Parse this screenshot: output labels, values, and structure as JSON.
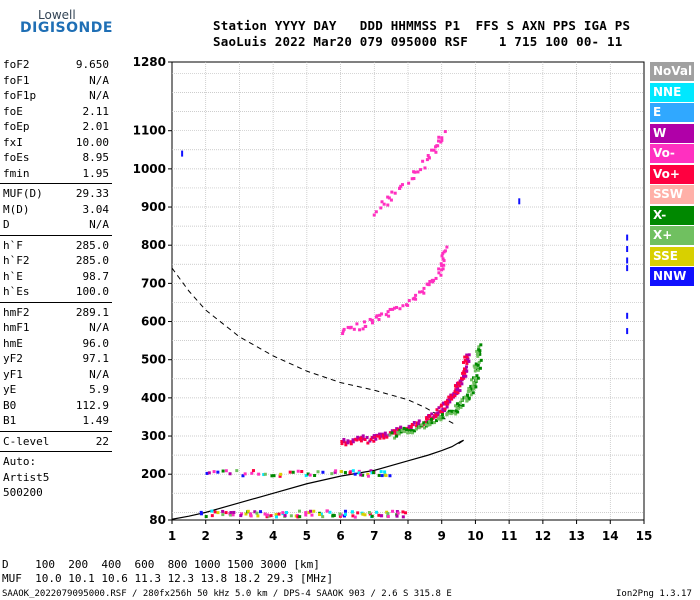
{
  "logo": {
    "top": "Lowell",
    "bottom": "DIGISONDE"
  },
  "header": {
    "line1": "Station YYYY DAY   DDD HHMMSS P1  FFS S AXN PPS IGA PS",
    "line2": "SaoLuis 2022 Mar20 079 095000 RSF    1 715 100 00- 11"
  },
  "params": {
    "group1": [
      {
        "k": "foF2",
        "v": "9.650"
      },
      {
        "k": "foF1",
        "v": "N/A"
      },
      {
        "k": "foF1p",
        "v": "N/A"
      },
      {
        "k": "foE",
        "v": "2.11"
      },
      {
        "k": "foEp",
        "v": "2.01"
      },
      {
        "k": "fxI",
        "v": "10.00"
      },
      {
        "k": "foEs",
        "v": "8.95"
      },
      {
        "k": "fmin",
        "v": "1.95"
      }
    ],
    "group2": [
      {
        "k": "MUF(D)",
        "v": "29.33"
      },
      {
        "k": "M(D)",
        "v": "3.04"
      },
      {
        "k": "D",
        "v": "N/A"
      }
    ],
    "group3": [
      {
        "k": "h`F",
        "v": "285.0"
      },
      {
        "k": "h`F2",
        "v": "285.0"
      },
      {
        "k": "h`E",
        "v": "98.7"
      },
      {
        "k": "h`Es",
        "v": "100.0"
      }
    ],
    "group4": [
      {
        "k": "hmF2",
        "v": "289.1"
      },
      {
        "k": "hmF1",
        "v": "N/A"
      },
      {
        "k": "hmE",
        "v": "96.0"
      },
      {
        "k": "yF2",
        "v": "97.1"
      },
      {
        "k": "yF1",
        "v": "N/A"
      },
      {
        "k": "yE",
        "v": "5.9"
      },
      {
        "k": "B0",
        "v": "112.9"
      },
      {
        "k": "B1",
        "v": "1.49"
      }
    ],
    "clevel": {
      "k": "C-level",
      "v": "22"
    },
    "auto": [
      "Auto:",
      "Artist5",
      "500200"
    ]
  },
  "legend": [
    {
      "label": "NoVal",
      "color": "#a0a0a0"
    },
    {
      "label": "NNE",
      "color": "#00e8ff"
    },
    {
      "label": "E",
      "color": "#30a8ff"
    },
    {
      "label": "W",
      "color": "#b000a8"
    },
    {
      "label": "Vo-",
      "color": "#ff30c0"
    },
    {
      "label": "Vo+",
      "color": "#ff0040"
    },
    {
      "label": "SSW",
      "color": "#ffb0a8"
    },
    {
      "label": "X-",
      "color": "#008800"
    },
    {
      "label": "X+",
      "color": "#70c060"
    },
    {
      "label": "SSE",
      "color": "#d8d000"
    },
    {
      "label": "NNW",
      "color": "#1010ff"
    }
  ],
  "footer": {
    "line1": "D    100  200  400  600  800 1000 1500 3000 [km]",
    "line2": "MUF  10.0 10.1 10.6 11.3 12.3 13.8 18.2 29.3 [MHz]",
    "line3": "SAAOK_2022079095000.RSF / 280fx256h 50 kHz 5.0 km / DPS-4 SAAOK 903 / 2.6 S 315.8 E",
    "version": "Ion2Png 1.3.17"
  },
  "chart_data": {
    "type": "scatter",
    "title": "",
    "xlabel": "",
    "ylabel": "",
    "xlim": [
      1,
      15
    ],
    "ylim": [
      80,
      1280
    ],
    "grid": true,
    "x_ticks": [
      1,
      2,
      3,
      4,
      5,
      6,
      7,
      8,
      9,
      10,
      11,
      12,
      13,
      14,
      15
    ],
    "y_ticks": [
      80,
      200,
      300,
      400,
      500,
      600,
      700,
      800,
      900,
      1000,
      1100,
      1280
    ],
    "series": [
      {
        "name": "",
        "style": "F2 O-trace",
        "color": "#ff0040",
        "x": [
          6.0,
          6.5,
          7.0,
          7.5,
          8.0,
          8.5,
          8.8,
          9.0,
          9.2,
          9.4,
          9.5,
          9.6,
          9.65
        ],
        "y": [
          285,
          290,
          298,
          310,
          325,
          345,
          360,
          375,
          395,
          420,
          445,
          480,
          520
        ]
      },
      {
        "name": "",
        "style": "F2 X-trace",
        "color": "#70c060",
        "x": [
          7.5,
          8.0,
          8.5,
          9.0,
          9.4,
          9.7,
          9.9,
          10.0,
          10.05
        ],
        "y": [
          305,
          315,
          330,
          350,
          375,
          405,
          440,
          485,
          540
        ]
      },
      {
        "name": "",
        "style": "2F second hop",
        "color": "#ff30c0",
        "x": [
          6.0,
          6.5,
          7.0,
          7.5,
          8.0,
          8.5,
          8.8,
          9.0,
          9.1
        ],
        "y": [
          575,
          590,
          610,
          630,
          655,
          690,
          720,
          760,
          800
        ]
      },
      {
        "name": "",
        "style": "3F third hop",
        "color": "#ff30c0",
        "x": [
          7.0,
          7.5,
          8.0,
          8.5,
          8.8,
          9.0
        ],
        "y": [
          890,
          930,
          975,
          1025,
          1065,
          1100
        ]
      },
      {
        "name": "",
        "style": "Es trace",
        "color": "#ff0040",
        "x": [
          2.0,
          3.0,
          4.0,
          5.0,
          6.0,
          6.5,
          7.0,
          7.5
        ],
        "y": [
          205,
          207,
          206,
          205,
          207,
          206,
          205,
          205
        ]
      },
      {
        "name": "",
        "style": "E layer echoes",
        "color": "#1010ff",
        "x": [
          1.8,
          2.5,
          3.0,
          3.5,
          4.0,
          4.5,
          5.0,
          5.5,
          6.0,
          6.5,
          7.0,
          7.5,
          8.0
        ],
        "y": [
          100,
          100,
          99,
          101,
          98,
          100,
          99,
          100,
          101,
          98,
          100,
          99,
          100
        ]
      }
    ],
    "profile": {
      "x": [
        1.0,
        1.5,
        2.0,
        3.0,
        4.0,
        5.0,
        6.0,
        7.0,
        8.0,
        8.6,
        9.0,
        9.3,
        9.55,
        9.65,
        9.6,
        9.5
      ],
      "y": [
        82,
        90,
        100,
        125,
        150,
        175,
        195,
        210,
        235,
        250,
        262,
        272,
        285,
        289,
        286,
        280
      ]
    },
    "muf_curve": {
      "x": [
        1.0,
        1.5,
        2.0,
        3.0,
        4.0,
        5.0,
        6.0,
        7.0,
        8.0,
        8.5,
        9.0,
        9.4
      ],
      "y": [
        740,
        680,
        630,
        560,
        510,
        470,
        440,
        420,
        395,
        375,
        350,
        330
      ]
    }
  }
}
